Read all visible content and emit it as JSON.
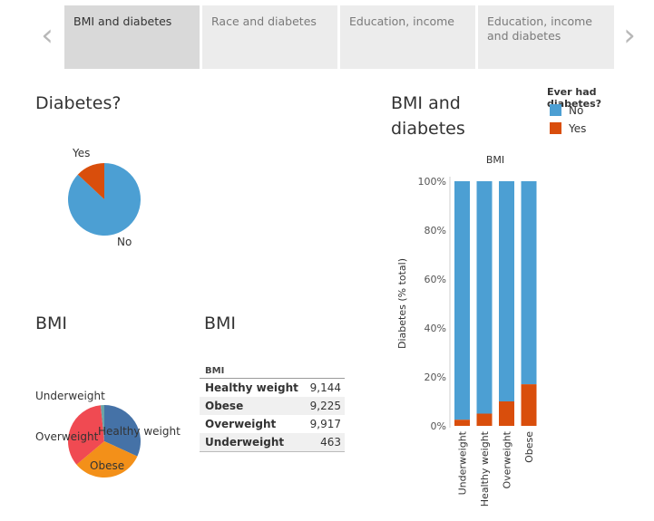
{
  "tabs": [
    {
      "label": "BMI and diabetes",
      "active": true
    },
    {
      "label": "Race and diabetes",
      "active": false
    },
    {
      "label": "Education,  income",
      "active": false
    },
    {
      "label": "Education, income and diabetes",
      "active": false
    }
  ],
  "nav": {
    "prev_icon": "chevron-left-icon",
    "next_icon": "chevron-right-icon",
    "prev_glyph": "‹",
    "next_glyph": "›"
  },
  "diabetes_pie": {
    "title": "Diabetes?",
    "label_yes": "Yes",
    "label_no": "No"
  },
  "bmi_pie": {
    "title": "BMI",
    "label_underweight": "Underweight",
    "label_overweight": "Overweight",
    "label_healthy": "Healthy weight",
    "label_obese": "Obese"
  },
  "bmi_table": {
    "title": "BMI",
    "header": "BMI",
    "rows": [
      {
        "category": "Healthy weight",
        "count": "9,144"
      },
      {
        "category": "Obese",
        "count": "9,225"
      },
      {
        "category": "Overweight",
        "count": "9,917"
      },
      {
        "category": "Underweight",
        "count": "463"
      }
    ]
  },
  "bar_chart": {
    "title_line1": "BMI and",
    "title_line2": "diabetes"
  },
  "colors": {
    "no": "#4c9fd3",
    "yes": "#d94e0c",
    "underweight": "#6ba3a6",
    "healthy": "#4572a7",
    "obese": "#f39019",
    "overweight": "#f04a52"
  },
  "chart_data": [
    {
      "type": "pie",
      "title": "Diabetes?",
      "categories": [
        "No",
        "Yes"
      ],
      "values": [
        87,
        13
      ]
    },
    {
      "type": "pie",
      "title": "BMI",
      "categories": [
        "Healthy weight",
        "Obese",
        "Overweight",
        "Underweight"
      ],
      "values": [
        9144,
        9225,
        9917,
        463
      ]
    },
    {
      "type": "bar",
      "stacked": true,
      "title": "BMI",
      "xlabel": "",
      "ylabel": "Diabetes (% total)",
      "categories": [
        "Underweight",
        "Healthy weight",
        "Overweight",
        "Obese"
      ],
      "yticks": [
        "0%",
        "20%",
        "40%",
        "60%",
        "80%",
        "100%"
      ],
      "ylim": [
        0,
        100
      ],
      "legend_title": "Ever had diabetes?",
      "legend_position": "top-right",
      "series": [
        {
          "name": "Yes",
          "values": [
            2.5,
            5,
            10,
            17
          ]
        },
        {
          "name": "No",
          "values": [
            97.5,
            95,
            90,
            83
          ]
        }
      ]
    }
  ]
}
